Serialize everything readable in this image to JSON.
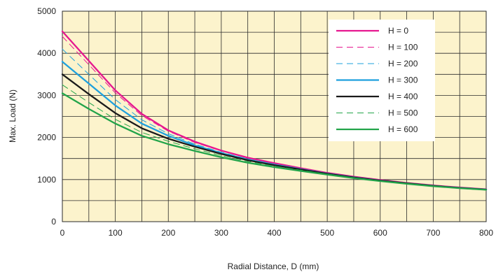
{
  "chart_data": {
    "type": "line",
    "xlabel": "Radial Distance, D (mm)",
    "ylabel": "Max. Load (N)",
    "xlim": [
      0,
      800
    ],
    "ylim": [
      0,
      5000
    ],
    "x_ticks": [
      0,
      100,
      200,
      300,
      400,
      500,
      600,
      700,
      800
    ],
    "y_ticks": [
      0,
      1000,
      2000,
      3000,
      4000,
      5000
    ],
    "x_minor_step": 50,
    "y_minor_step": 500,
    "grid": true,
    "legend_position": "top-right",
    "x": [
      0,
      50,
      100,
      150,
      200,
      250,
      300,
      350,
      400,
      450,
      500,
      550,
      600,
      650,
      700,
      750,
      800
    ],
    "series": [
      {
        "name": "H = 0",
        "color": "#e6178f",
        "dash": "solid",
        "weight": "thick",
        "values": [
          4520,
          3820,
          3120,
          2560,
          2170,
          1900,
          1690,
          1520,
          1390,
          1270,
          1160,
          1070,
          990,
          920,
          860,
          810,
          770
        ]
      },
      {
        "name": "H = 100",
        "color": "#e6178f",
        "dash": "dashed",
        "weight": "thin",
        "values": [
          4400,
          3730,
          3060,
          2520,
          2150,
          1880,
          1680,
          1510,
          1380,
          1265,
          1155,
          1065,
          985,
          918,
          858,
          808,
          768
        ]
      },
      {
        "name": "H = 200",
        "color": "#1ea0dd",
        "dash": "dashed",
        "weight": "thin",
        "values": [
          4100,
          3500,
          2900,
          2420,
          2090,
          1840,
          1650,
          1490,
          1365,
          1255,
          1148,
          1060,
          982,
          915,
          855,
          805,
          766
        ]
      },
      {
        "name": "H = 300",
        "color": "#1ea0dd",
        "dash": "solid",
        "weight": "thick",
        "values": [
          3800,
          3280,
          2760,
          2330,
          2040,
          1810,
          1630,
          1475,
          1355,
          1248,
          1143,
          1055,
          978,
          912,
          852,
          803,
          764
        ]
      },
      {
        "name": "H = 400",
        "color": "#1a1a1a",
        "dash": "solid",
        "weight": "thick",
        "values": [
          3500,
          3030,
          2580,
          2220,
          1970,
          1780,
          1610,
          1460,
          1340,
          1240,
          1138,
          1050,
          975,
          910,
          850,
          800,
          762
        ]
      },
      {
        "name": "H = 500",
        "color": "#22a44a",
        "dash": "dashed",
        "weight": "thin",
        "values": [
          3250,
          2830,
          2430,
          2120,
          1910,
          1730,
          1570,
          1430,
          1320,
          1225,
          1130,
          1045,
          970,
          906,
          847,
          798,
          760
        ]
      },
      {
        "name": "H = 600",
        "color": "#22a44a",
        "dash": "solid",
        "weight": "thick",
        "values": [
          3050,
          2680,
          2330,
          2040,
          1840,
          1680,
          1530,
          1400,
          1295,
          1205,
          1118,
          1035,
          963,
          900,
          843,
          795,
          757
        ]
      }
    ]
  },
  "style": {
    "plot_background": "#fcf3cc",
    "grid_color": "#2a2a2a",
    "legend_background": "#ffffff"
  }
}
